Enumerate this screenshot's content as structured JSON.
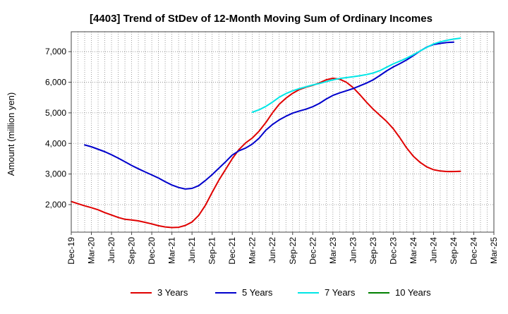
{
  "chart_data": {
    "type": "line",
    "title": "[4403]  Trend of StDev of 12-Month Moving Sum of Ordinary Incomes",
    "xlabel": "",
    "ylabel": "Amount (million yen)",
    "ylim": [
      1100,
      7650
    ],
    "yticks": [
      2000,
      3000,
      4000,
      5000,
      6000,
      7000
    ],
    "ytick_labels": [
      "2,000",
      "3,000",
      "4,000",
      "5,000",
      "6,000",
      "7,000"
    ],
    "xticks": [
      "Dec-19",
      "Mar-20",
      "Jun-20",
      "Sep-20",
      "Dec-20",
      "Mar-21",
      "Jun-21",
      "Sep-21",
      "Dec-21",
      "Mar-22",
      "Jun-22",
      "Sep-22",
      "Dec-22",
      "Mar-23",
      "Jun-23",
      "Sep-23",
      "Dec-23",
      "Mar-24",
      "Jun-24",
      "Sep-24",
      "Dec-24",
      "Mar-25"
    ],
    "grid": true,
    "legend_position": "bottom",
    "series": [
      {
        "name": "3 Years",
        "color": "#e00000",
        "start_month": 0,
        "values": [
          2100,
          2030,
          1960,
          1900,
          1830,
          1740,
          1660,
          1580,
          1520,
          1500,
          1470,
          1420,
          1370,
          1310,
          1270,
          1250,
          1260,
          1320,
          1430,
          1650,
          1980,
          2400,
          2800,
          3150,
          3500,
          3800,
          4020,
          4180,
          4400,
          4680,
          5000,
          5280,
          5480,
          5640,
          5760,
          5840,
          5900,
          5980,
          6080,
          6130,
          6100,
          6000,
          5830,
          5600,
          5350,
          5120,
          4920,
          4720,
          4480,
          4180,
          3850,
          3580,
          3380,
          3230,
          3140,
          3100,
          3080,
          3080,
          3090
        ]
      },
      {
        "name": "5 Years",
        "color": "#0000cc",
        "start_month": 2,
        "values": [
          3950,
          3890,
          3810,
          3730,
          3630,
          3520,
          3400,
          3280,
          3170,
          3070,
          2970,
          2870,
          2750,
          2640,
          2560,
          2510,
          2530,
          2620,
          2790,
          2980,
          3190,
          3400,
          3620,
          3760,
          3850,
          3980,
          4170,
          4430,
          4620,
          4770,
          4890,
          4990,
          5060,
          5120,
          5200,
          5310,
          5450,
          5570,
          5650,
          5720,
          5790,
          5880,
          5970,
          6080,
          6220,
          6370,
          6500,
          6610,
          6730,
          6870,
          7020,
          7150,
          7230,
          7270,
          7300,
          7310
        ]
      },
      {
        "name": "7 Years",
        "color": "#00e6e6",
        "start_month": 27,
        "values": [
          5020,
          5100,
          5210,
          5350,
          5510,
          5630,
          5720,
          5790,
          5850,
          5910,
          5960,
          6020,
          6080,
          6120,
          6150,
          6180,
          6210,
          6250,
          6300,
          6380,
          6490,
          6600,
          6690,
          6790,
          6900,
          7020,
          7140,
          7250,
          7320,
          7370,
          7410,
          7440
        ]
      },
      {
        "name": "10 Years",
        "color": "#008000",
        "start_month": 0,
        "values": []
      }
    ]
  }
}
